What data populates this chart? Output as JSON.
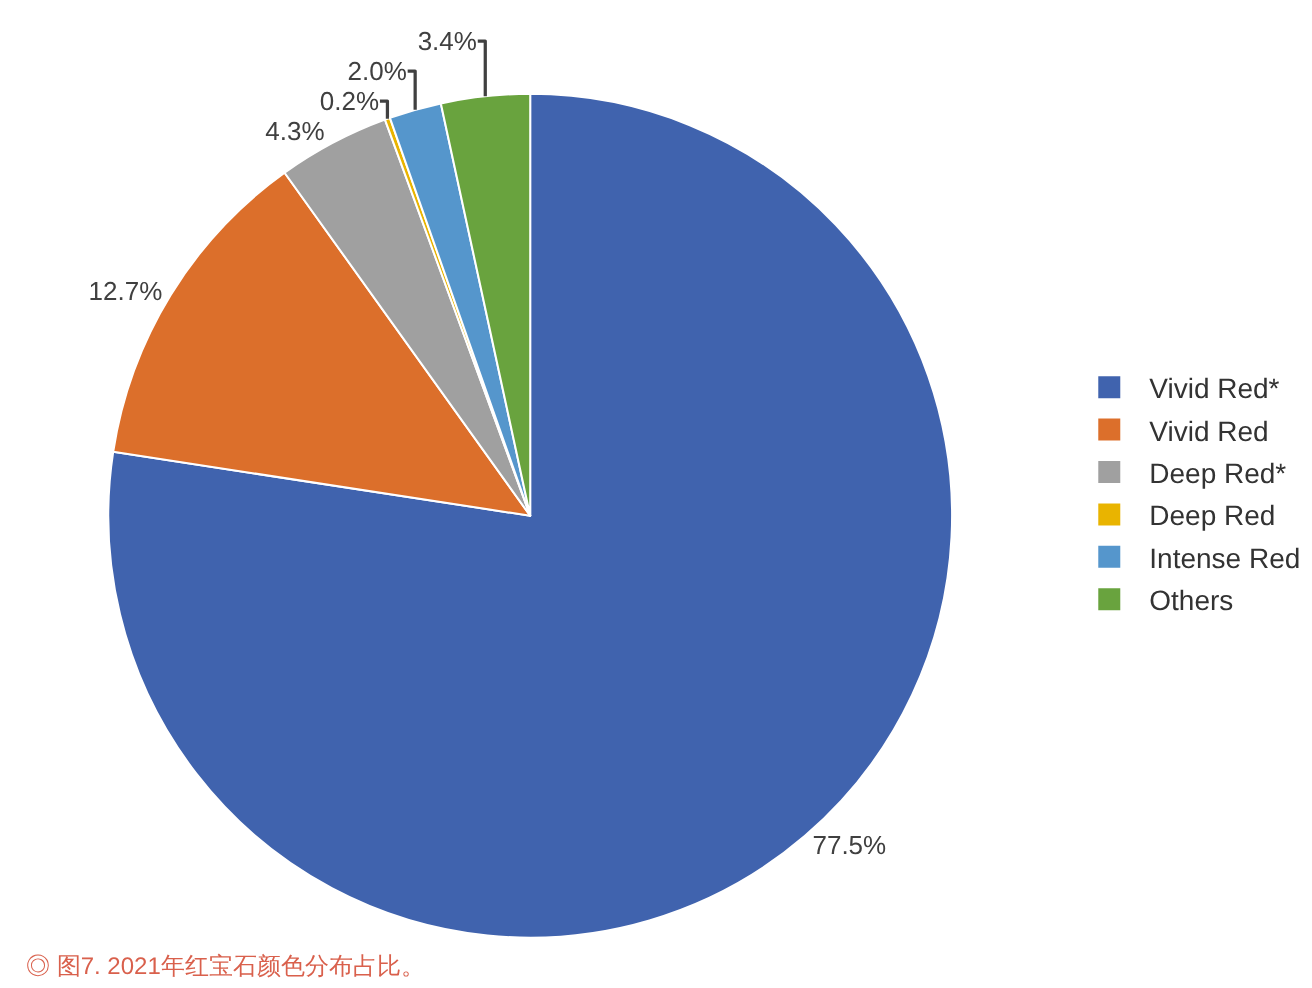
{
  "chart_data": {
    "type": "pie",
    "categories": [
      "Vivid Red*",
      "Vivid Red",
      "Deep Red*",
      "Deep Red",
      "Intense Red",
      "Others"
    ],
    "values": [
      77.5,
      12.7,
      4.3,
      0.2,
      2.0,
      3.4
    ],
    "value_labels": [
      "77.5%",
      "12.7%",
      "4.3%",
      "0.2%",
      "2.0%",
      "3.4%"
    ],
    "colors": [
      "#4063ae",
      "#dc6f2b",
      "#a0a0a0",
      "#e9b400",
      "#5596cc",
      "#69a33e"
    ],
    "legend": "right",
    "annotations": [
      "◎ 图7. 2021年红宝石颜色分布占比。"
    ]
  }
}
